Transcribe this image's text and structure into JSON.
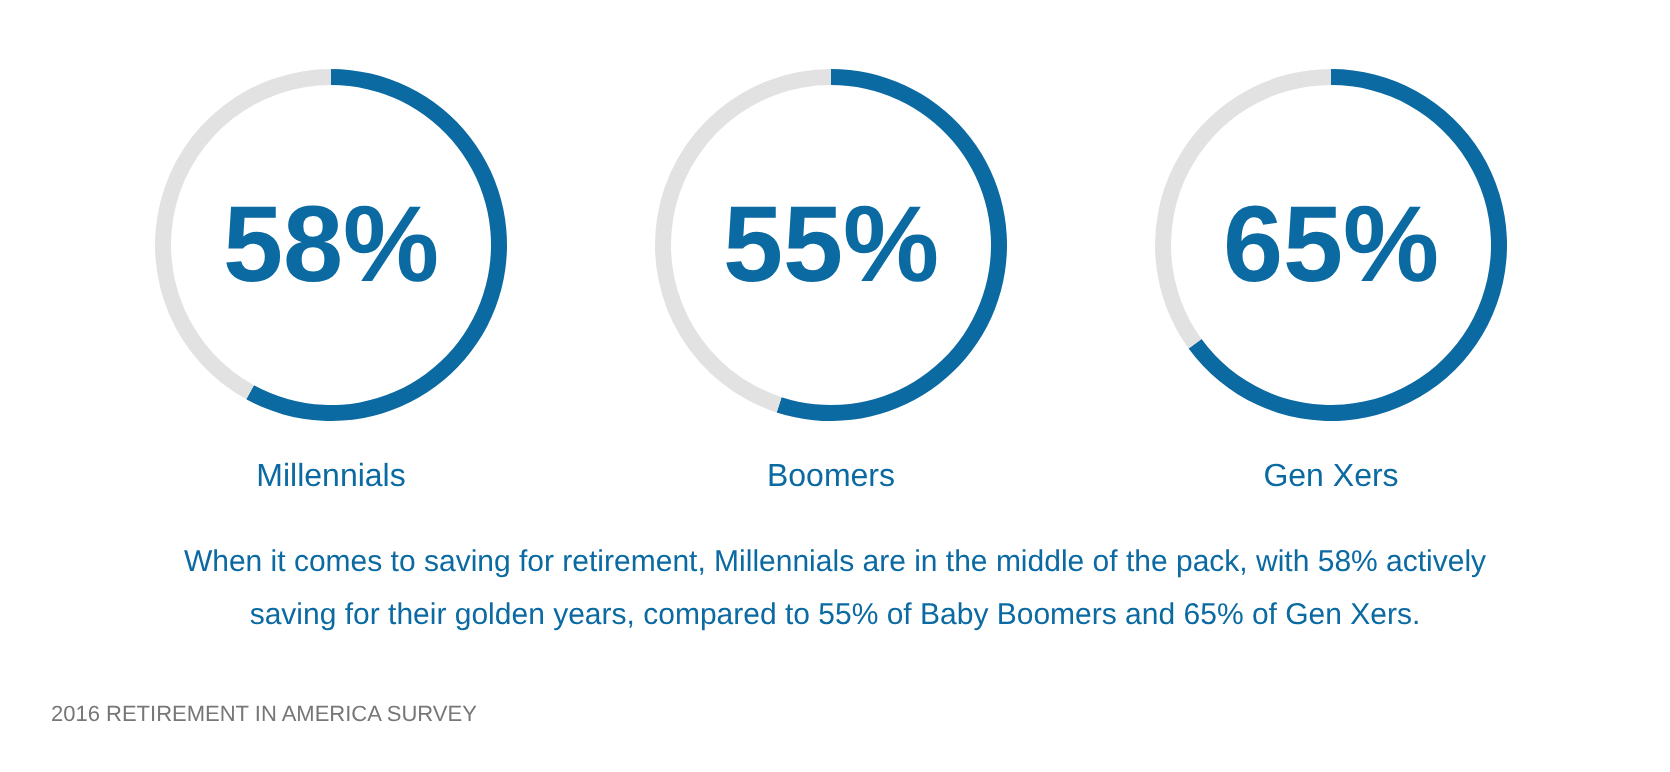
{
  "chart_data": [
    {
      "type": "donut",
      "title": "Millennials",
      "categories": [
        null,
        null
      ],
      "values": [
        58,
        42
      ],
      "colors": [
        "#0b6aa2",
        "#e2e2e2"
      ],
      "annotations": [
        "58%"
      ]
    },
    {
      "type": "donut",
      "title": "Boomers",
      "categories": [
        null,
        null
      ],
      "values": [
        55,
        45
      ],
      "colors": [
        "#0b6aa2",
        "#e2e2e2"
      ],
      "annotations": [
        "55%"
      ]
    },
    {
      "type": "donut",
      "title": "Gen Xers",
      "categories": [
        null,
        null
      ],
      "values": [
        65,
        35
      ],
      "colors": [
        "#0b6aa2",
        "#e2e2e2"
      ],
      "annotations": [
        "65%"
      ]
    },
    {
      "type": "other",
      "annotations": [
        "When it comes to saving for retirement, Millennials are in the middle of the pack, with 58% actively saving for their golden years, compared to 55% of Baby Boomers and 65% of Gen Xers.",
        "2016 RETIREMENT IN AMERICA SURVEY"
      ]
    }
  ]
}
